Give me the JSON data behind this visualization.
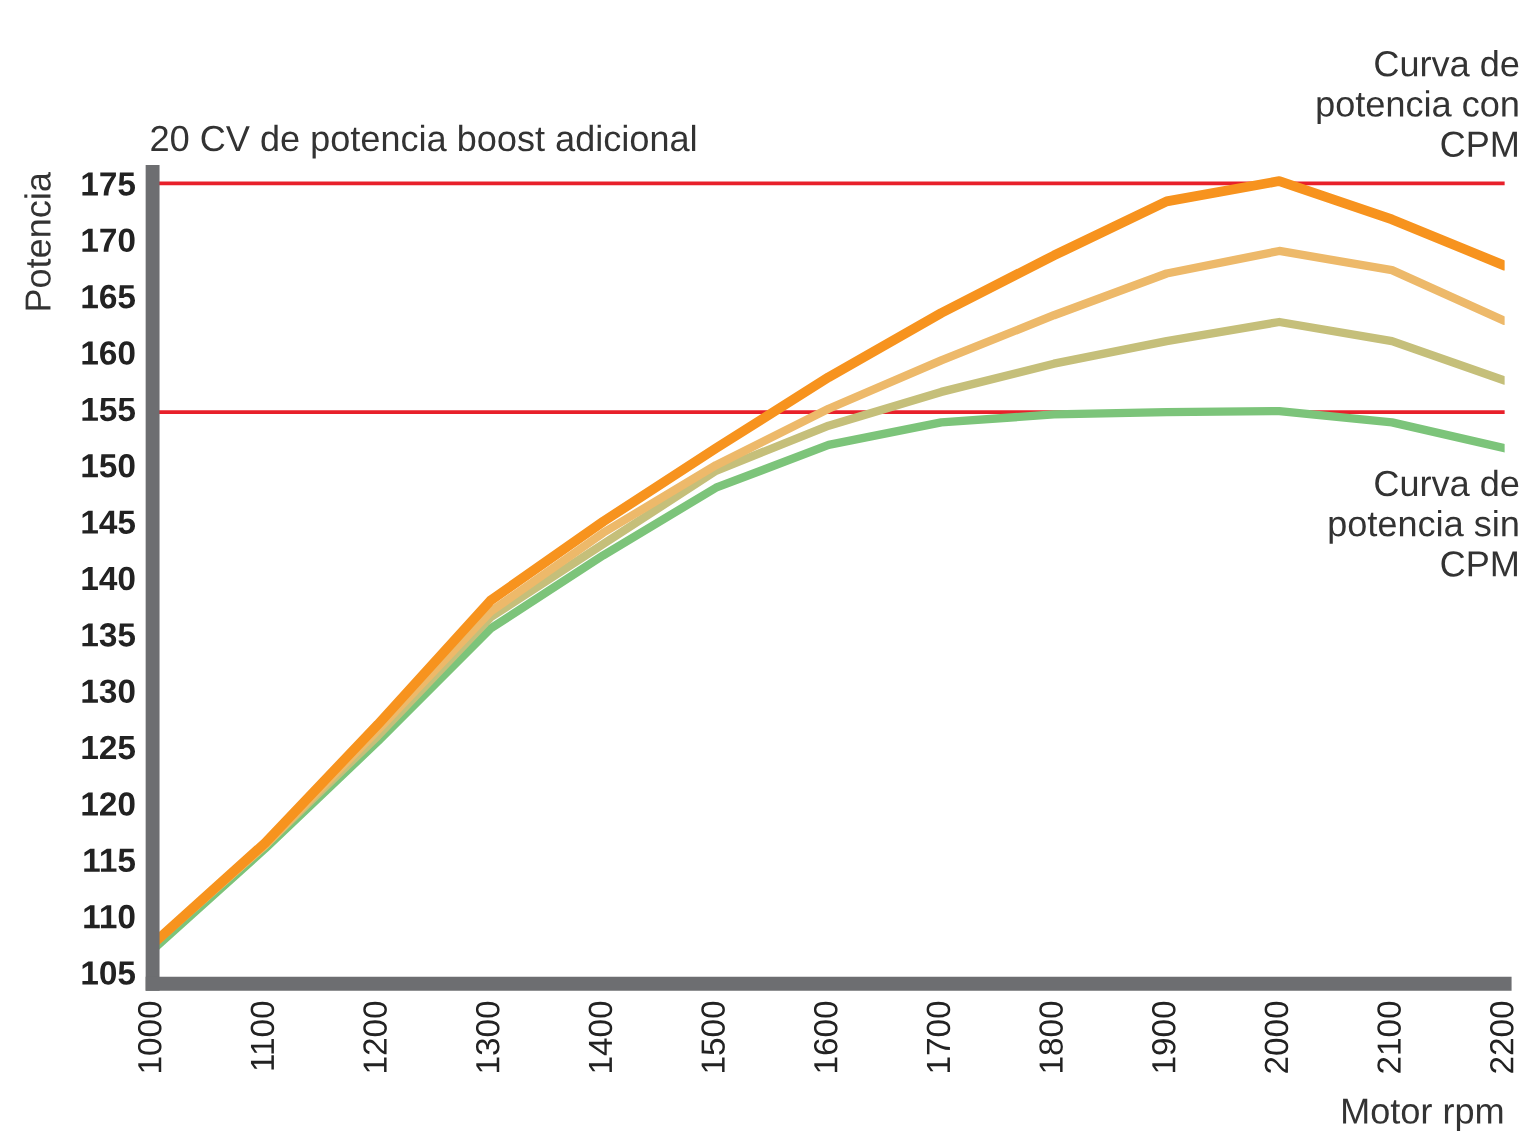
{
  "chart_data": {
    "type": "line",
    "xlabel": "Motor rpm",
    "ylabel": "Potencia",
    "annotations": [
      "20 CV de potencia boost adicional",
      "Curva de\npotencia con\nCPM",
      "Curva de\npotencia sin\nCPM"
    ],
    "x": [
      1000,
      1100,
      1200,
      1300,
      1400,
      1500,
      1600,
      1700,
      1800,
      1900,
      2000,
      2100,
      2200
    ],
    "series": [
      {
        "color": "#7cc47a",
        "values": [
          107,
          116,
          125.5,
          135.5,
          142,
          148,
          151.8,
          153.8,
          154.5,
          154.7,
          154.8,
          153.8,
          151.5
        ]
      },
      {
        "color": "#c5bf7a",
        "values": [
          107.5,
          116.3,
          126,
          136.5,
          143,
          149.5,
          153.5,
          156.5,
          159,
          161,
          162.7,
          161,
          157.5
        ]
      },
      {
        "color": "#edb96a",
        "values": [
          107.5,
          116.3,
          126.5,
          137,
          144,
          150,
          155,
          159.3,
          163.3,
          167,
          169,
          167.3,
          162.8
        ]
      },
      {
        "color": "#f7931e",
        "values": [
          107.5,
          116.5,
          127,
          138,
          145,
          151.5,
          157.8,
          163.5,
          168.6,
          173.4,
          175.2,
          171.8,
          167.7
        ]
      }
    ],
    "ref_lines": [
      {
        "axis": "y",
        "value": 175,
        "color": "#e8202a"
      },
      {
        "axis": "y",
        "value": 154.7,
        "color": "#e8202a"
      }
    ],
    "xlim": [
      1000,
      2200
    ],
    "xticks": [
      1000,
      1100,
      1200,
      1300,
      1400,
      1500,
      1600,
      1700,
      1800,
      1900,
      2000,
      2100,
      2200
    ],
    "ylim": [
      104,
      176
    ],
    "yticks": [
      105,
      110,
      115,
      120,
      125,
      130,
      135,
      140,
      145,
      150,
      155,
      160,
      165,
      170,
      175
    ],
    "grid": false,
    "legend": false
  }
}
